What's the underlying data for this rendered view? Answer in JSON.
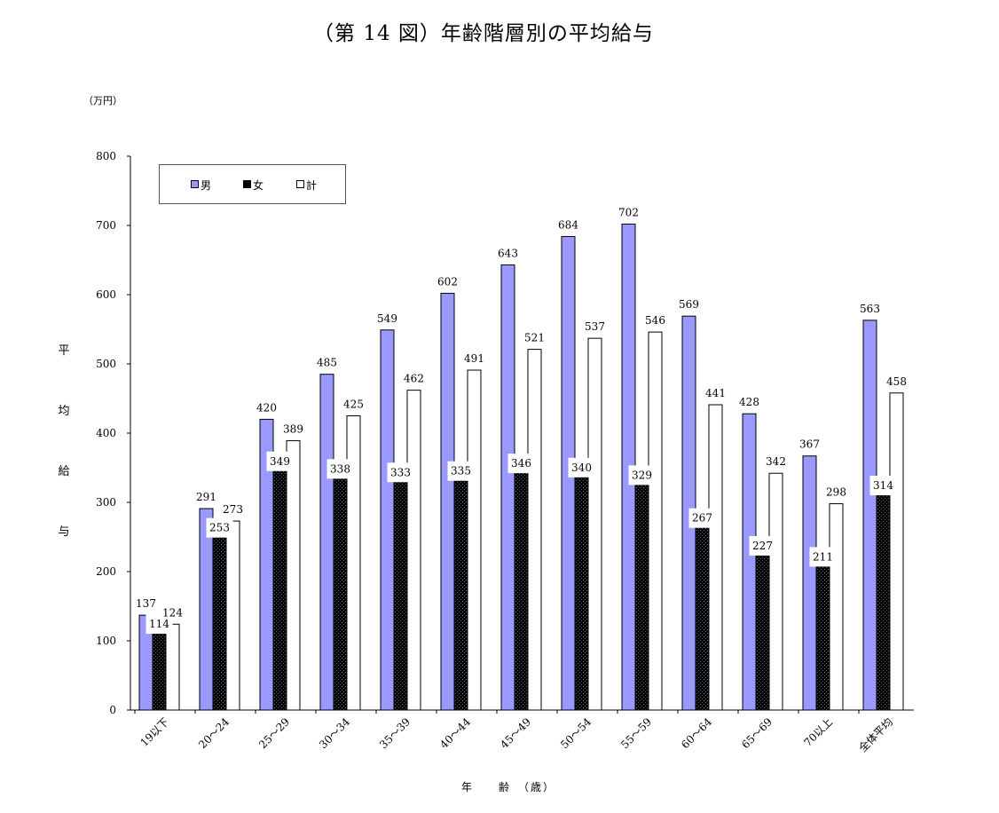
{
  "chart_data": {
    "type": "bar",
    "title": "（第 14 図）年齢階層別の平均給与",
    "unit_label": "（万円）",
    "ylabel": "平均給与",
    "ylabel_chars": [
      "平",
      "均",
      "給",
      "与"
    ],
    "xlabel": "年　　齢　（歳）",
    "ylim": [
      0,
      800
    ],
    "yticks": [
      0,
      100,
      200,
      300,
      400,
      500,
      600,
      700,
      800
    ],
    "grid": false,
    "legend_position": "top-left",
    "categories": [
      "19以下",
      "20～24",
      "25～29",
      "30～34",
      "35～39",
      "40～44",
      "45～49",
      "50～54",
      "55～59",
      "60～64",
      "65～69",
      "70以上",
      "全体平均"
    ],
    "series": [
      {
        "name": "男",
        "color": "#9999ff",
        "pattern": "solid",
        "values": [
          137,
          291,
          420,
          485,
          549,
          602,
          643,
          684,
          702,
          569,
          428,
          367,
          563
        ]
      },
      {
        "name": "女",
        "color": "#000000",
        "pattern": "dotted",
        "values": [
          114,
          253,
          349,
          338,
          333,
          335,
          346,
          340,
          329,
          267,
          227,
          211,
          314
        ]
      },
      {
        "name": "計",
        "color": "#ffffff",
        "pattern": "solid",
        "values": [
          124,
          273,
          389,
          425,
          462,
          491,
          521,
          537,
          546,
          441,
          342,
          298,
          458
        ]
      }
    ]
  }
}
